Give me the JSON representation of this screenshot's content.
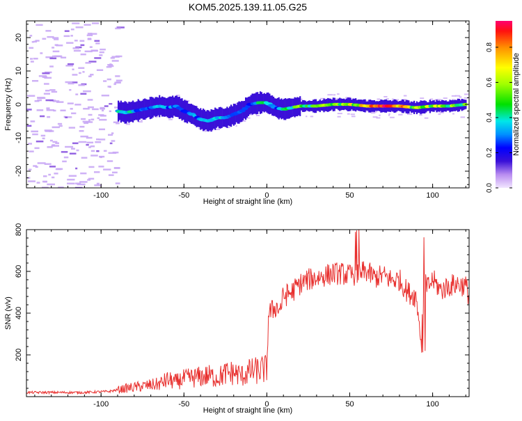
{
  "title": "KOM5.2025.139.11.05.G25",
  "colors": {
    "snr_line": "#e8302e",
    "spectrum_low": "#c9a8f5",
    "axis": "#000000"
  },
  "colorbar": {
    "label": "Normalized spectral amplitude",
    "ticks": [
      "0.0",
      "0.2",
      "0.4",
      "0.6",
      "0.8"
    ],
    "range": [
      0,
      0.95
    ],
    "colormap": "rainbow"
  },
  "chart_data": [
    {
      "type": "heatmap",
      "xlabel": "Height of straight line (km)",
      "ylabel": "Frequency (Hz)",
      "xlim": [
        -145,
        122
      ],
      "ylim": [
        -25,
        25
      ],
      "x_ticks": [
        "-100",
        "-50",
        "0",
        "50",
        "100"
      ],
      "y_ticks": [
        "-20",
        "-10",
        "0",
        "10",
        "20"
      ],
      "ridge": {
        "x": [
          -90,
          -85,
          -80,
          -75,
          -70,
          -65,
          -60,
          -55,
          -50,
          -45,
          -40,
          -35,
          -30,
          -25,
          -20,
          -15,
          -10,
          -5,
          0,
          5,
          10,
          15,
          20,
          30,
          40,
          50,
          60,
          70,
          80,
          90,
          100,
          110,
          120
        ],
        "frequency": [
          -2,
          -2.5,
          -2,
          -1.5,
          -1,
          -0.5,
          -1,
          -0.5,
          -2,
          -3,
          -4.5,
          -5,
          -4,
          -4,
          -3,
          -2,
          0,
          0.5,
          0.5,
          -1,
          -1.5,
          -1,
          -0.5,
          -0.5,
          0,
          0,
          -0.5,
          -0.5,
          -0.5,
          -1,
          -0.5,
          -0.5,
          0
        ],
        "amplitude": [
          0.35,
          0.45,
          0.3,
          0.25,
          0.3,
          0.35,
          0.3,
          0.3,
          0.25,
          0.3,
          0.3,
          0.35,
          0.4,
          0.3,
          0.25,
          0.35,
          0.3,
          0.45,
          0.5,
          0.3,
          0.4,
          0.45,
          0.55,
          0.5,
          0.55,
          0.6,
          0.7,
          0.85,
          0.8,
          0.55,
          0.6,
          0.55,
          0.5
        ]
      },
      "noise_region_x": [
        -145,
        -90
      ]
    },
    {
      "type": "line",
      "xlabel": "Height of straight line (km)",
      "ylabel": "SNR (v/v)",
      "xlim": [
        -145,
        122
      ],
      "ylim": [
        0,
        800
      ],
      "x_ticks": [
        "-100",
        "-50",
        "0",
        "50",
        "100"
      ],
      "y_ticks": [
        "200",
        "400",
        "600",
        "800"
      ],
      "series": [
        {
          "x": [
            -145,
            -130,
            -110,
            -95,
            -85,
            -75,
            -65,
            -60,
            -55,
            -50,
            -45,
            -40,
            -35,
            -30,
            -25,
            -20,
            -15,
            -10,
            -5,
            -2,
            0,
            1,
            3,
            5,
            8,
            10,
            15,
            20,
            25,
            30,
            35,
            40,
            45,
            50,
            55,
            60,
            65,
            70,
            75,
            80,
            85,
            90,
            93,
            95,
            97,
            100,
            105,
            110,
            115,
            120,
            122
          ],
          "y": [
            20,
            20,
            20,
            25,
            40,
            50,
            60,
            80,
            70,
            85,
            90,
            95,
            100,
            90,
            110,
            115,
            100,
            120,
            125,
            130,
            130,
            400,
            410,
            430,
            420,
            480,
            500,
            540,
            560,
            570,
            580,
            590,
            590,
            580,
            590,
            600,
            570,
            580,
            560,
            560,
            500,
            480,
            300,
            560,
            520,
            560,
            510,
            530,
            540,
            530,
            480
          ]
        }
      ]
    }
  ]
}
